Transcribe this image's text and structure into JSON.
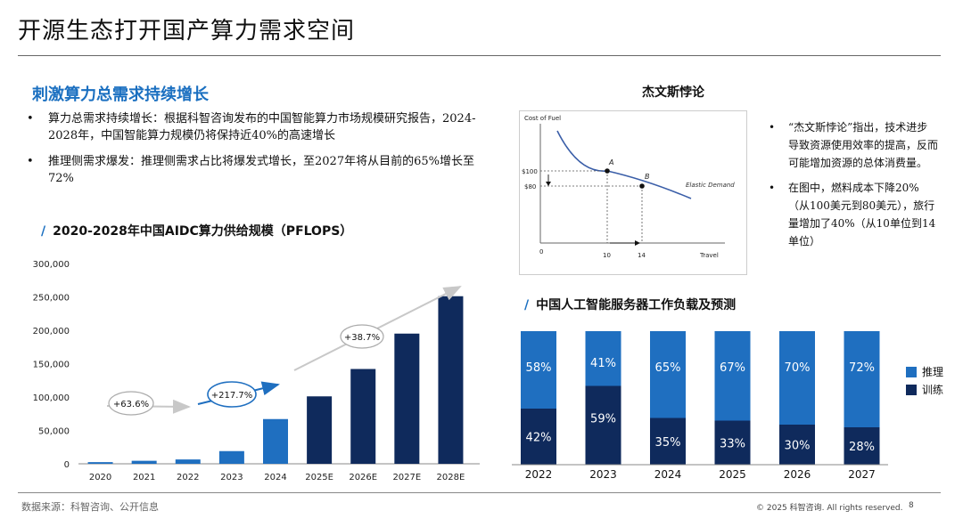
{
  "slide_title": "开源生态打开国产算力需求空间",
  "section_title": "刺激算力总需求持续增长",
  "bullets": [
    "算力总需求持续增长：根据科智咨询发布的中国智能算力市场规模研究报告，2024-2028年，中国智能算力规模仍将保持近40%的高速增长",
    "推理侧需求爆发：推理侧需求占比将爆发式增长，至2027年将从目前的65%增长至72%"
  ],
  "slash_mark": "/",
  "jevons": {
    "heading": "杰文斯悖论",
    "bullets": [
      "“杰文斯悖论”指出，技术进步导致资源使用效率的提高，反而可能增加资源的总体消费量。",
      "在图中，燃料成本下降20%（从100美元到80美元），旅行量增加了40%（从10单位到14单位）"
    ],
    "diagram": {
      "ylabel": "Cost of Fuel",
      "xlabel": "Travel",
      "origin": "0",
      "y_ticks": [
        "$100",
        "$80"
      ],
      "x_ticks": [
        "10",
        "14"
      ],
      "point_a": "A",
      "point_b": "B",
      "curve_label": "Elastic Demand"
    }
  },
  "chart_data": [
    {
      "type": "bar",
      "title": "2020-2028年中国AIDC算力供给规模（PFLOPS）",
      "categories": [
        "2020",
        "2021",
        "2022",
        "2023",
        "2024",
        "2025E",
        "2026E",
        "2027E",
        "2028E"
      ],
      "values": [
        2500,
        4500,
        6500,
        19000,
        67000,
        101000,
        142000,
        195000,
        251000
      ],
      "ylim": [
        0,
        300000
      ],
      "y_ticks": [
        0,
        50000,
        100000,
        150000,
        200000,
        250000,
        300000
      ],
      "y_tick_labels": [
        "0",
        "50,000",
        "100,000",
        "150,000",
        "200,000",
        "250,000",
        "300,000"
      ],
      "annotations": [
        "+63.6%",
        "+217.7%",
        "+38.7%"
      ],
      "colors": {
        "actual": "#1f6fc0",
        "forecast": "#0f2a5c"
      }
    },
    {
      "type": "bar",
      "stacked": true,
      "title": "中国人工智能服务器工作负载及预测",
      "categories": [
        "2022",
        "2023",
        "2024",
        "2025",
        "2026",
        "2027"
      ],
      "series": [
        {
          "name": "推理",
          "values": [
            58,
            41,
            65,
            67,
            70,
            72
          ],
          "labels": [
            "58%",
            "41%",
            "65%",
            "67%",
            "70%",
            "72%"
          ],
          "color": "#1f6fc0"
        },
        {
          "name": "训练",
          "values": [
            42,
            59,
            35,
            33,
            30,
            28
          ],
          "labels": [
            "42%",
            "59%",
            "35%",
            "33%",
            "30%",
            "28%"
          ],
          "color": "#0f2a5c"
        }
      ],
      "legend": "right"
    }
  ],
  "footer": {
    "source": "数据来源：科智咨询、公开信息",
    "copyright": "© 2025 科智咨询. All rights reserved.",
    "page": "8"
  }
}
